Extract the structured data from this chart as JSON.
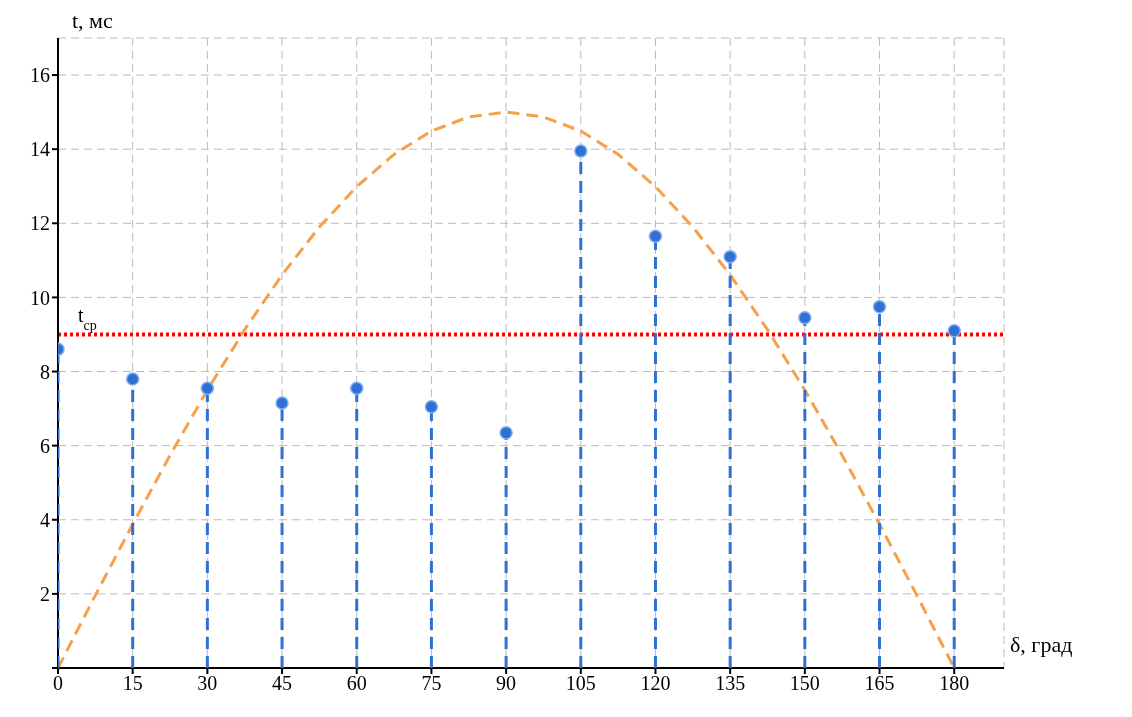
{
  "chart_data": {
    "type": "lollipop",
    "xlabel": "δ, град",
    "ylabel": "t, мс",
    "x": [
      0,
      15,
      30,
      45,
      60,
      75,
      90,
      105,
      120,
      135,
      150,
      165,
      180
    ],
    "series": [
      {
        "color": "#2f6fd6",
        "line_style": "dashed",
        "marker": "circle",
        "values": [
          8.6,
          7.8,
          7.55,
          7.15,
          7.55,
          7.05,
          6.35,
          13.95,
          11.65,
          11.1,
          9.45,
          9.75,
          9.1
        ]
      },
      {
        "type": "line",
        "color": "#f5a04a",
        "line_style": "dashed",
        "marker": "none",
        "x": [
          0,
          7.5,
          15,
          22.5,
          30,
          37.5,
          45,
          52.5,
          60,
          67.5,
          75,
          82.5,
          90,
          97.5,
          105,
          112.5,
          120,
          127.5,
          135,
          142.5,
          150,
          157.5,
          165,
          172.5,
          180
        ],
        "values": [
          0,
          1.96,
          3.88,
          5.74,
          7.5,
          9.13,
          10.61,
          11.9,
          12.99,
          13.86,
          14.49,
          14.87,
          15,
          14.87,
          14.49,
          13.86,
          12.99,
          11.9,
          10.61,
          9.13,
          7.5,
          5.74,
          3.88,
          1.96,
          0
        ]
      }
    ],
    "ref_lines": [
      {
        "axis": "y",
        "value": 9,
        "label": "t$_{ср}$",
        "color": "#ff0000",
        "line_style": "dotted"
      }
    ],
    "xlim": [
      0,
      190
    ],
    "ylim": [
      0,
      17
    ],
    "xticks": [
      0,
      15,
      30,
      45,
      60,
      75,
      90,
      105,
      120,
      135,
      150,
      165,
      180
    ],
    "yticks": [
      {
        "value": 0,
        "label": null
      },
      2,
      4,
      6,
      8,
      10,
      12,
      14,
      16
    ],
    "grid": true
  }
}
